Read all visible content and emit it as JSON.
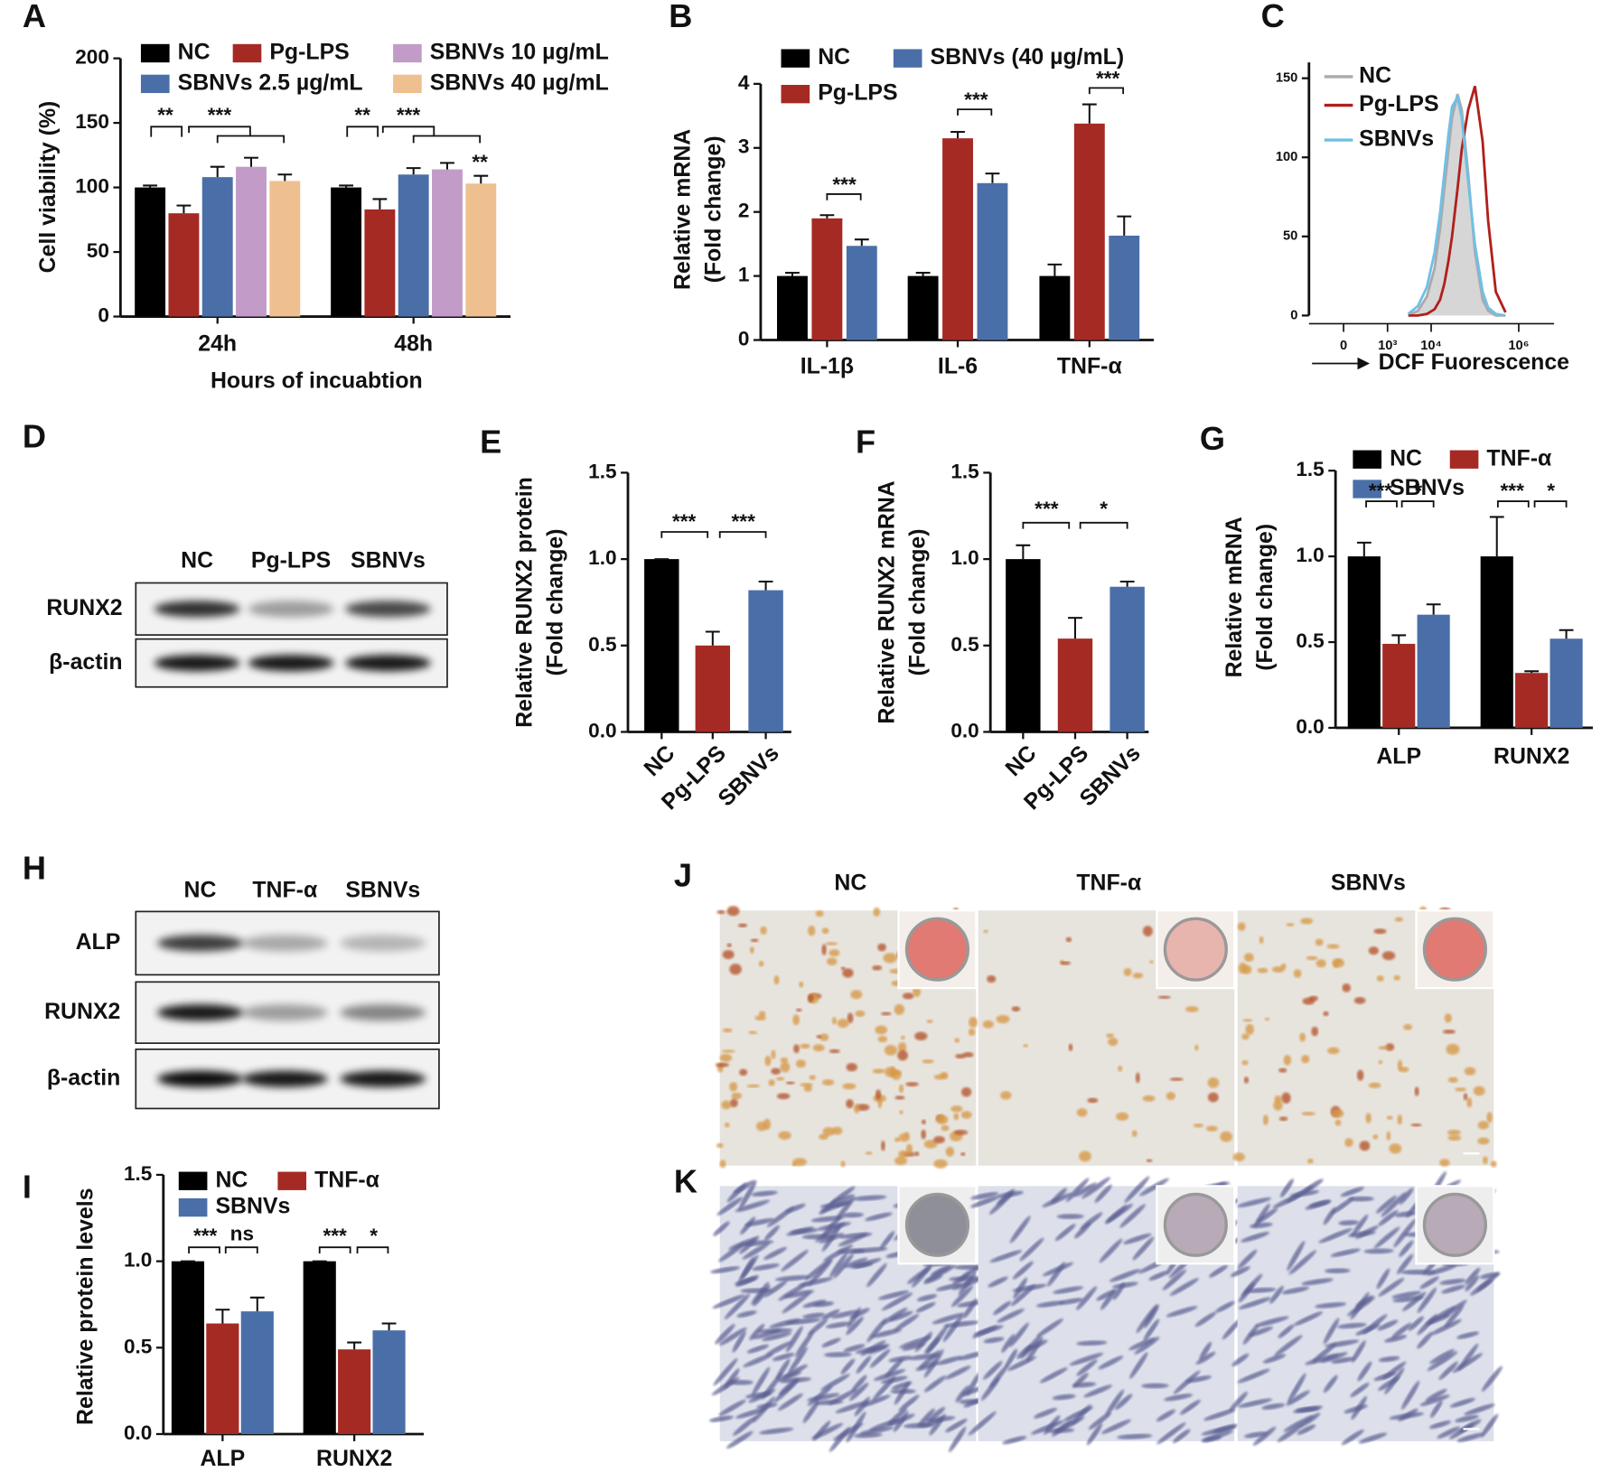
{
  "chart_data": [
    {
      "label": "A",
      "type": "bar",
      "ylabel": "Cell viability (%)",
      "xlabel": "Hours of incuabtion",
      "categories": [
        "24h",
        "48h"
      ],
      "ylim": [
        0,
        200
      ],
      "yticks": [
        0,
        50,
        100,
        150,
        200
      ],
      "series": [
        {
          "name": "NC",
          "color": "#000000",
          "values": [
            100,
            100
          ],
          "errors": [
            1.5,
            1.5
          ]
        },
        {
          "name": "Pg-LPS",
          "color": "#a52a24",
          "values": [
            80,
            83
          ],
          "errors": [
            6,
            8
          ]
        },
        {
          "name": "SBNVs 2.5 µg/mL",
          "color": "#4a6fa8",
          "values": [
            108,
            110
          ],
          "errors": [
            8,
            5
          ]
        },
        {
          "name": "SBNVs 10 µg/mL",
          "color": "#c39bc8",
          "values": [
            116,
            114
          ],
          "errors": [
            7,
            5
          ]
        },
        {
          "name": "SBNVs 40 µg/mL",
          "color": "#efc08f",
          "values": [
            105,
            103
          ],
          "errors": [
            5,
            6
          ]
        }
      ],
      "annotations": [
        "**",
        "***",
        "**",
        "***",
        "**"
      ]
    },
    {
      "label": "B",
      "type": "bar",
      "ylabel": [
        "Relative mRNA",
        "(Fold change)"
      ],
      "categories": [
        "IL-1β",
        "IL-6",
        "TNF-α"
      ],
      "ylim": [
        0,
        4
      ],
      "yticks": [
        0,
        1,
        2,
        3,
        4
      ],
      "series": [
        {
          "name": "NC",
          "color": "#000000",
          "values": [
            1,
            1,
            1
          ],
          "errors": [
            0.05,
            0.05,
            0.18
          ]
        },
        {
          "name": "Pg-LPS",
          "color": "#a52a24",
          "values": [
            1.9,
            3.15,
            3.38
          ],
          "errors": [
            0.05,
            0.1,
            0.3
          ]
        },
        {
          "name": "SBNVs (40 µg/mL)",
          "color": "#4a6fa8",
          "values": [
            1.47,
            2.45,
            1.63
          ],
          "errors": [
            0.1,
            0.15,
            0.3
          ]
        }
      ],
      "annotations": [
        "***",
        "***",
        "***"
      ]
    },
    {
      "label": "C",
      "type": "line",
      "xlabel": "DCF Fuorescence",
      "xscale": "biexponential",
      "x": [
        3000,
        5000,
        8000,
        12000,
        16000,
        20000,
        25000,
        30000,
        40000,
        50000,
        70000,
        100000,
        150000,
        200000,
        300000,
        500000
      ],
      "xlim": [
        -600,
        6400000
      ],
      "xticks": [
        {
          "value": 0,
          "label": "0"
        },
        {
          "value": 1000,
          "label": "10³"
        },
        {
          "value": 10000,
          "label": "10⁴"
        },
        {
          "value": 1000000,
          "label": "10⁶"
        }
      ],
      "ylim": [
        0,
        160
      ],
      "yticks": [
        0,
        50,
        100,
        150
      ],
      "series": [
        {
          "name": "NC",
          "color": "#aaaaaa",
          "fill": "#d6d6d6",
          "values": [
            0,
            3,
            12,
            30,
            55,
            80,
            105,
            125,
            140,
            130,
            90,
            40,
            10,
            3,
            0,
            0
          ]
        },
        {
          "name": "Pg-LPS",
          "color": "#b0201c",
          "values": [
            0,
            0,
            1,
            4,
            10,
            20,
            35,
            50,
            80,
            105,
            130,
            145,
            110,
            60,
            15,
            2
          ]
        },
        {
          "name": "SBNVs",
          "color": "#6fc0e6",
          "values": [
            1,
            6,
            18,
            40,
            65,
            90,
            115,
            132,
            138,
            125,
            85,
            45,
            15,
            5,
            1,
            0
          ]
        }
      ]
    },
    {
      "label": "E",
      "type": "bar",
      "ylabel": [
        "Relative RUNX2 protein",
        "(Fold change)"
      ],
      "categories": [
        "NC",
        "Pg-LPS",
        "SBNVs"
      ],
      "values": [
        1.0,
        0.5,
        0.82
      ],
      "errors": [
        0,
        0.08,
        0.05
      ],
      "colors": [
        "#000000",
        "#a52a24",
        "#4a6fa8"
      ],
      "ylim": [
        0,
        1.5
      ],
      "yticks": [
        {
          "value": 0,
          "label": "0.0"
        },
        0.5,
        {
          "value": 1,
          "label": "1.0"
        },
        1.5
      ],
      "annotations": [
        "***",
        "***"
      ]
    },
    {
      "label": "F",
      "type": "bar",
      "ylabel": [
        "Relative RUNX2 mRNA",
        "(Fold change)"
      ],
      "categories": [
        "NC",
        "Pg-LPS",
        "SBNVs"
      ],
      "values": [
        1.0,
        0.54,
        0.84
      ],
      "errors": [
        0.08,
        0.12,
        0.03
      ],
      "colors": [
        "#000000",
        "#a52a24",
        "#4a6fa8"
      ],
      "ylim": [
        0,
        1.5
      ],
      "yticks": [
        {
          "value": 0,
          "label": "0.0"
        },
        0.5,
        {
          "value": 1,
          "label": "1.0"
        },
        1.5
      ],
      "annotations": [
        "***",
        "*"
      ]
    },
    {
      "label": "G",
      "type": "bar",
      "ylabel": [
        "Relative mRNA",
        "(Fold change)"
      ],
      "categories": [
        "ALP",
        "RUNX2"
      ],
      "ylim": [
        0,
        1.5
      ],
      "yticks": [
        {
          "value": 0,
          "label": "0.0"
        },
        0.5,
        {
          "value": 1,
          "label": "1.0"
        },
        1.5
      ],
      "series": [
        {
          "name": "NC",
          "color": "#000000",
          "values": [
            1,
            1
          ],
          "errors": [
            0.08,
            0.23
          ]
        },
        {
          "name": "TNF-α",
          "color": "#a52a24",
          "values": [
            0.49,
            0.32
          ],
          "errors": [
            0.05,
            0.01
          ]
        },
        {
          "name": "SBNVs",
          "color": "#4a6fa8",
          "values": [
            0.66,
            0.52
          ],
          "errors": [
            0.06,
            0.05
          ]
        }
      ],
      "annotations": [
        "***",
        "*",
        "***",
        "*"
      ]
    },
    {
      "label": "I",
      "type": "bar",
      "ylabel": "Relative protein levels",
      "categories": [
        "ALP",
        "RUNX2"
      ],
      "ylim": [
        0,
        1.5
      ],
      "yticks": [
        {
          "value": 0,
          "label": "0.0"
        },
        0.5,
        {
          "value": 1,
          "label": "1.0"
        },
        1.5
      ],
      "series": [
        {
          "name": "NC",
          "color": "#000000",
          "values": [
            1,
            1
          ],
          "errors": [
            0,
            0
          ]
        },
        {
          "name": "TNF-α",
          "color": "#a52a24",
          "values": [
            0.64,
            0.49
          ],
          "errors": [
            0.08,
            0.04
          ]
        },
        {
          "name": "SBNVs",
          "color": "#4a6fa8",
          "values": [
            0.71,
            0.6
          ],
          "errors": [
            0.08,
            0.04
          ]
        }
      ],
      "annotations": [
        "***",
        "ns",
        "***",
        "*"
      ]
    }
  ],
  "blots": [
    {
      "label": "D",
      "lanes": [
        "NC",
        "Pg-LPS",
        "SBNVs"
      ],
      "rows": [
        "RUNX2",
        "β-actin"
      ]
    },
    {
      "label": "H",
      "lanes": [
        "NC",
        "TNF-α",
        "SBNVs"
      ],
      "rows": [
        "ALP",
        "RUNX2",
        "β-actin"
      ]
    }
  ],
  "images": {
    "labels": [
      "J",
      "K"
    ],
    "columns": [
      "NC",
      "TNF-α",
      "SBNVs"
    ]
  }
}
